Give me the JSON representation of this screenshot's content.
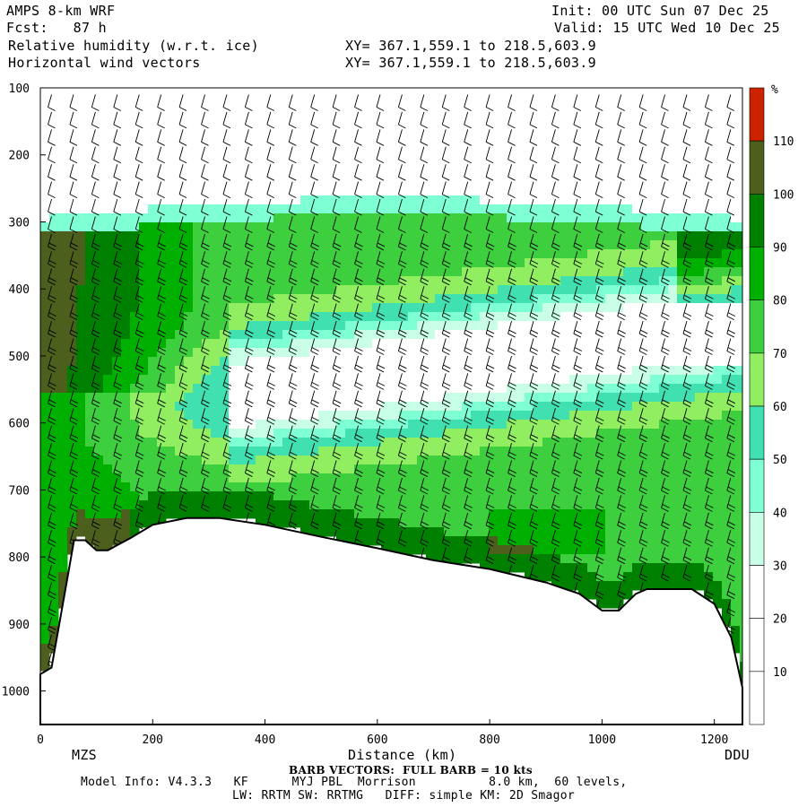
{
  "header": {
    "model": "AMPS 8-km WRF",
    "fcst_label": "Fcst:",
    "fcst_value": "87 h",
    "field1": "Relative humidity (w.r.t. ice)",
    "field2": "Horizontal wind vectors",
    "init": "Init: 00 UTC Sun 07 Dec 25",
    "valid": "Valid: 15 UTC Wed 10 Dec 25",
    "xy1": "XY= 367.1,559.1 to 218.5,603.9",
    "xy2": "XY= 367.1,559.1 to 218.5,603.9"
  },
  "footer": {
    "start_label": "MZS",
    "end_label": "DDU",
    "barb_note": "BARB VECTORS:  FULL BARB = 10 kts",
    "model_info": "Model Info: V4.3.3   KF      MYJ PBL  Morrison          8.0 km,  60 levels,",
    "physics": "LW: RRTM SW: RRTMG   DIFF: simple KM: 2D Smagor"
  },
  "chart_data": {
    "type": "heatmap",
    "title": "Relative humidity (w.r.t. ice)",
    "xlabel": "Distance (km)",
    "ylabel": "",
    "xlim": [
      0,
      1250
    ],
    "ylim": [
      1050,
      100
    ],
    "x_ticks": [
      0,
      200,
      400,
      600,
      800,
      1000,
      1200
    ],
    "y_ticks": [
      100,
      200,
      300,
      400,
      500,
      600,
      700,
      800,
      900,
      1000
    ],
    "colorbar": {
      "unit": "%",
      "levels": [
        10,
        20,
        30,
        40,
        50,
        60,
        70,
        80,
        90,
        100,
        110
      ],
      "colors": [
        "#ffffff",
        "#ffffff",
        "#ffffff",
        "#c8ffe6",
        "#7fffd4",
        "#40e0b0",
        "#90ee60",
        "#3ecf3e",
        "#00b000",
        "#008000",
        "#4d5f1c",
        "#cc2200"
      ]
    },
    "terrain_profile": [
      [
        0,
        975
      ],
      [
        20,
        965
      ],
      [
        40,
        870
      ],
      [
        60,
        775
      ],
      [
        80,
        775
      ],
      [
        100,
        790
      ],
      [
        120,
        790
      ],
      [
        160,
        772
      ],
      [
        200,
        752
      ],
      [
        260,
        742
      ],
      [
        320,
        742
      ],
      [
        400,
        752
      ],
      [
        500,
        770
      ],
      [
        600,
        787
      ],
      [
        700,
        805
      ],
      [
        800,
        818
      ],
      [
        900,
        838
      ],
      [
        960,
        855
      ],
      [
        1000,
        880
      ],
      [
        1030,
        880
      ],
      [
        1060,
        855
      ],
      [
        1080,
        848
      ],
      [
        1160,
        848
      ],
      [
        1200,
        870
      ],
      [
        1230,
        920
      ],
      [
        1250,
        995
      ]
    ]
  }
}
